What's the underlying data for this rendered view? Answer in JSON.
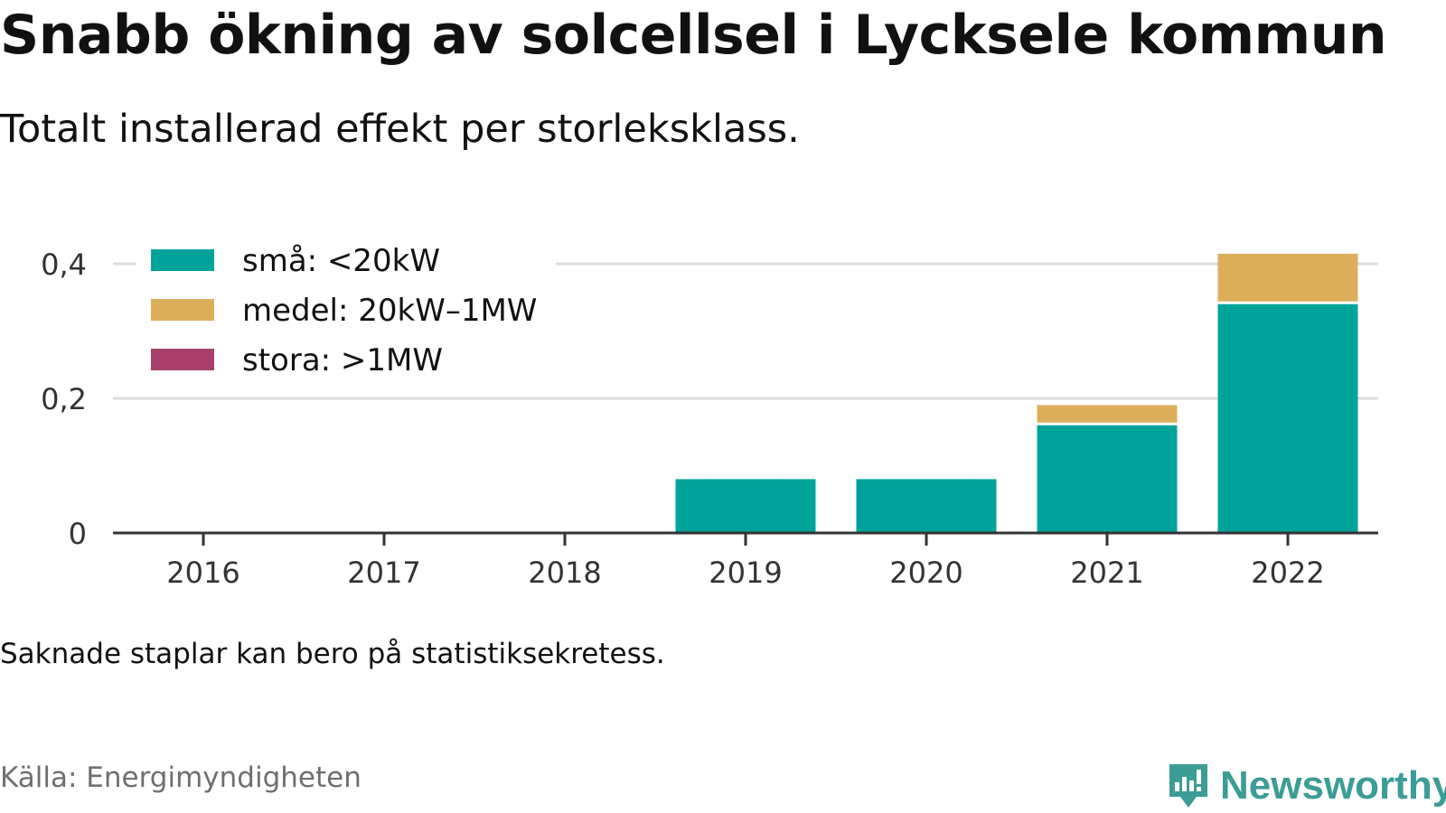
{
  "title": "Snabb ökning av solcellsel i Lycksele kommun",
  "subtitle": "Totalt installerad effekt per storleksklass.",
  "note": "Saknade staplar kan bero på statistiksekretess.",
  "source": "Källa: Energimyndigheten",
  "logo": {
    "text": "Newsworthy",
    "color": "#3c9c96"
  },
  "chart_data": {
    "type": "bar",
    "stacked": true,
    "categories": [
      "2016",
      "2017",
      "2018",
      "2019",
      "2020",
      "2021",
      "2022"
    ],
    "series": [
      {
        "name": "små: <20kW",
        "color": "#00a39a",
        "values": [
          0,
          0,
          0,
          0.08,
          0.08,
          0.16,
          0.34
        ]
      },
      {
        "name": "medel: 20kW–1MW",
        "color": "#dcae5c",
        "values": [
          0,
          0,
          0,
          0,
          0,
          0.03,
          0.075
        ]
      },
      {
        "name": "stora: >1MW",
        "color": "#a8406b",
        "values": [
          0,
          0,
          0,
          0,
          0,
          0,
          0
        ]
      }
    ],
    "yticks": [
      0,
      0.2,
      0.4
    ],
    "ytick_labels": [
      "0",
      "0,2",
      "0,4"
    ],
    "ylim": [
      0,
      0.42
    ],
    "grid": true,
    "legend_position": "top-left"
  }
}
